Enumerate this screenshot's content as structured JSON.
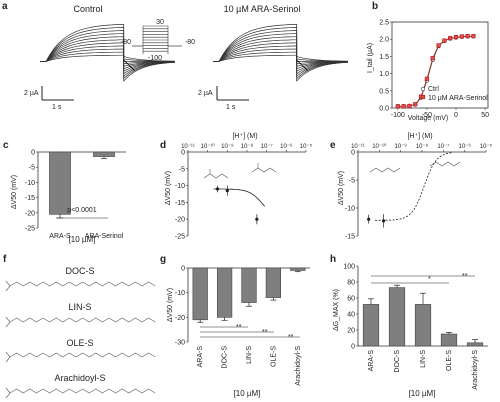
{
  "panels": {
    "a": {
      "letter": "a",
      "title_control": "Control",
      "title_drug": "10 µM ARA-Serinol",
      "scale_current": "2 µA",
      "scale_time": "1 s",
      "protocol_labels": [
        "30",
        "-80",
        "-100",
        "-80"
      ]
    },
    "b": {
      "letter": "b",
      "xlabel": "Voltage (mV)",
      "ylabel": "I_tail (µA)",
      "legend": [
        "Ctrl",
        "10 µM ARA-Serinol"
      ],
      "xticks": [
        "-100",
        "-50",
        "0",
        "50"
      ],
      "yticks": [
        "0.0",
        "0.5",
        "1.0",
        "1.5",
        "2.0",
        "2.5"
      ]
    },
    "c": {
      "letter": "c",
      "ylabel": "ΔV50 (mV)",
      "yticks": [
        "0",
        "-5",
        "-10",
        "-15",
        "-20",
        "-25"
      ],
      "categories": [
        "ARA-S",
        "ARA-Serinol"
      ],
      "pvalue": "p<0.0001",
      "xfooter": "[10 µM]"
    },
    "d": {
      "letter": "d",
      "top_label": "[H⁺] (M)",
      "ylabel": "ΔV50 (mV)",
      "yticks": [
        "0",
        "-5",
        "-10",
        "-15",
        "-20",
        "-25"
      ],
      "xticks": [
        "10⁻¹¹",
        "10⁻¹⁰",
        "10⁻⁹",
        "10⁻⁸",
        "10⁻⁷",
        "10⁻⁶",
        "10⁻⁵"
      ]
    },
    "e": {
      "letter": "e",
      "top_label": "[H⁺] (M)",
      "ylabel": "ΔV50 (mV)",
      "yticks": [
        "0",
        "-5",
        "-10",
        "-15"
      ],
      "xticks": [
        "10⁻¹¹",
        "10⁻¹⁰",
        "10⁻⁹",
        "10⁻⁸",
        "10⁻⁷",
        "10⁻⁶",
        "10⁻⁵"
      ]
    },
    "f": {
      "letter": "f",
      "molecules": [
        "DOC-S",
        "LIN-S",
        "OLE-S",
        "Arachidoyl-S"
      ]
    },
    "g": {
      "letter": "g",
      "ylabel": "ΔV50 (mV)",
      "yticks": [
        "0",
        "-10",
        "-20",
        "-30"
      ],
      "categories": [
        "ARA-S",
        "DOC-S",
        "LIN-S",
        "OLE-S",
        "Arachidoyl-S"
      ],
      "sig": [
        "**",
        "**",
        "**"
      ],
      "xfooter": "[10 µM]"
    },
    "h": {
      "letter": "h",
      "ylabel": "ΔG_MAX (%)",
      "yticks": [
        "0",
        "20",
        "40",
        "60",
        "80",
        "100"
      ],
      "categories": [
        "ARA-S",
        "DOC-S",
        "LIN-S",
        "OLE-S",
        "Arachidoyl-S"
      ],
      "sig": [
        "*",
        "**"
      ],
      "xfooter": "[10 µM]"
    }
  },
  "chart_data": [
    {
      "panel": "b",
      "type": "line",
      "xlabel": "Voltage (mV)",
      "ylabel": "I_tail (µA)",
      "xlim": [
        -110,
        55
      ],
      "ylim": [
        0,
        2.5
      ],
      "series": [
        {
          "name": "Ctrl",
          "x": [
            -100,
            -90,
            -80,
            -70,
            -60,
            -50,
            -40,
            -30,
            -20,
            -10,
            0,
            10,
            20,
            30
          ],
          "y": [
            0.05,
            0.05,
            0.06,
            0.1,
            0.3,
            0.8,
            1.4,
            1.8,
            1.95,
            2.02,
            2.05,
            2.07,
            2.08,
            2.08
          ]
        },
        {
          "name": "10 µM ARA-Serinol",
          "x": [
            -100,
            -90,
            -80,
            -70,
            -60,
            -50,
            -40,
            -30,
            -20,
            -10,
            0,
            10,
            20,
            30
          ],
          "y": [
            0.05,
            0.05,
            0.06,
            0.11,
            0.33,
            0.85,
            1.45,
            1.82,
            1.96,
            2.03,
            2.06,
            2.08,
            2.09,
            2.09
          ]
        }
      ]
    },
    {
      "panel": "c",
      "type": "bar",
      "categories": [
        "ARA-S",
        "ARA-Serinol"
      ],
      "values": [
        -20.5,
        -1.5
      ],
      "errors": [
        1.2,
        0.6
      ],
      "ylim": [
        -25,
        0
      ]
    },
    {
      "panel": "d",
      "type": "scatter",
      "xlabel": "[H⁺] (M)",
      "ylabel": "ΔV50 (mV)",
      "x_log": [
        -9.5,
        -9.0,
        -7.5
      ],
      "y": [
        -11.0,
        -11.5,
        -20.0
      ],
      "errors": [
        1.0,
        1.5,
        1.5
      ],
      "ylim": [
        -25,
        0
      ]
    },
    {
      "panel": "e",
      "type": "scatter",
      "xlabel": "[H⁺] (M)",
      "ylabel": "ΔV50 (mV)",
      "x_log": [
        -10.5,
        -9.8
      ],
      "y": [
        -12.0,
        -12.3
      ],
      "errors": [
        0.8,
        1.2
      ],
      "ylim": [
        -15,
        0
      ]
    },
    {
      "panel": "g",
      "type": "bar",
      "categories": [
        "ARA-S",
        "DOC-S",
        "LIN-S",
        "OLE-S",
        "Arachidoyl-S"
      ],
      "values": [
        -21.0,
        -20.0,
        -14.0,
        -12.0,
        -1.0
      ],
      "errors": [
        1.0,
        1.2,
        1.5,
        1.0,
        0.5
      ],
      "ylim": [
        -30,
        0
      ]
    },
    {
      "panel": "h",
      "type": "bar",
      "categories": [
        "ARA-S",
        "DOC-S",
        "LIN-S",
        "OLE-S",
        "Arachidoyl-S"
      ],
      "values": [
        52,
        73,
        52,
        15,
        4
      ],
      "errors": [
        7,
        3,
        14,
        2,
        4
      ],
      "ylim": [
        0,
        100
      ]
    }
  ]
}
